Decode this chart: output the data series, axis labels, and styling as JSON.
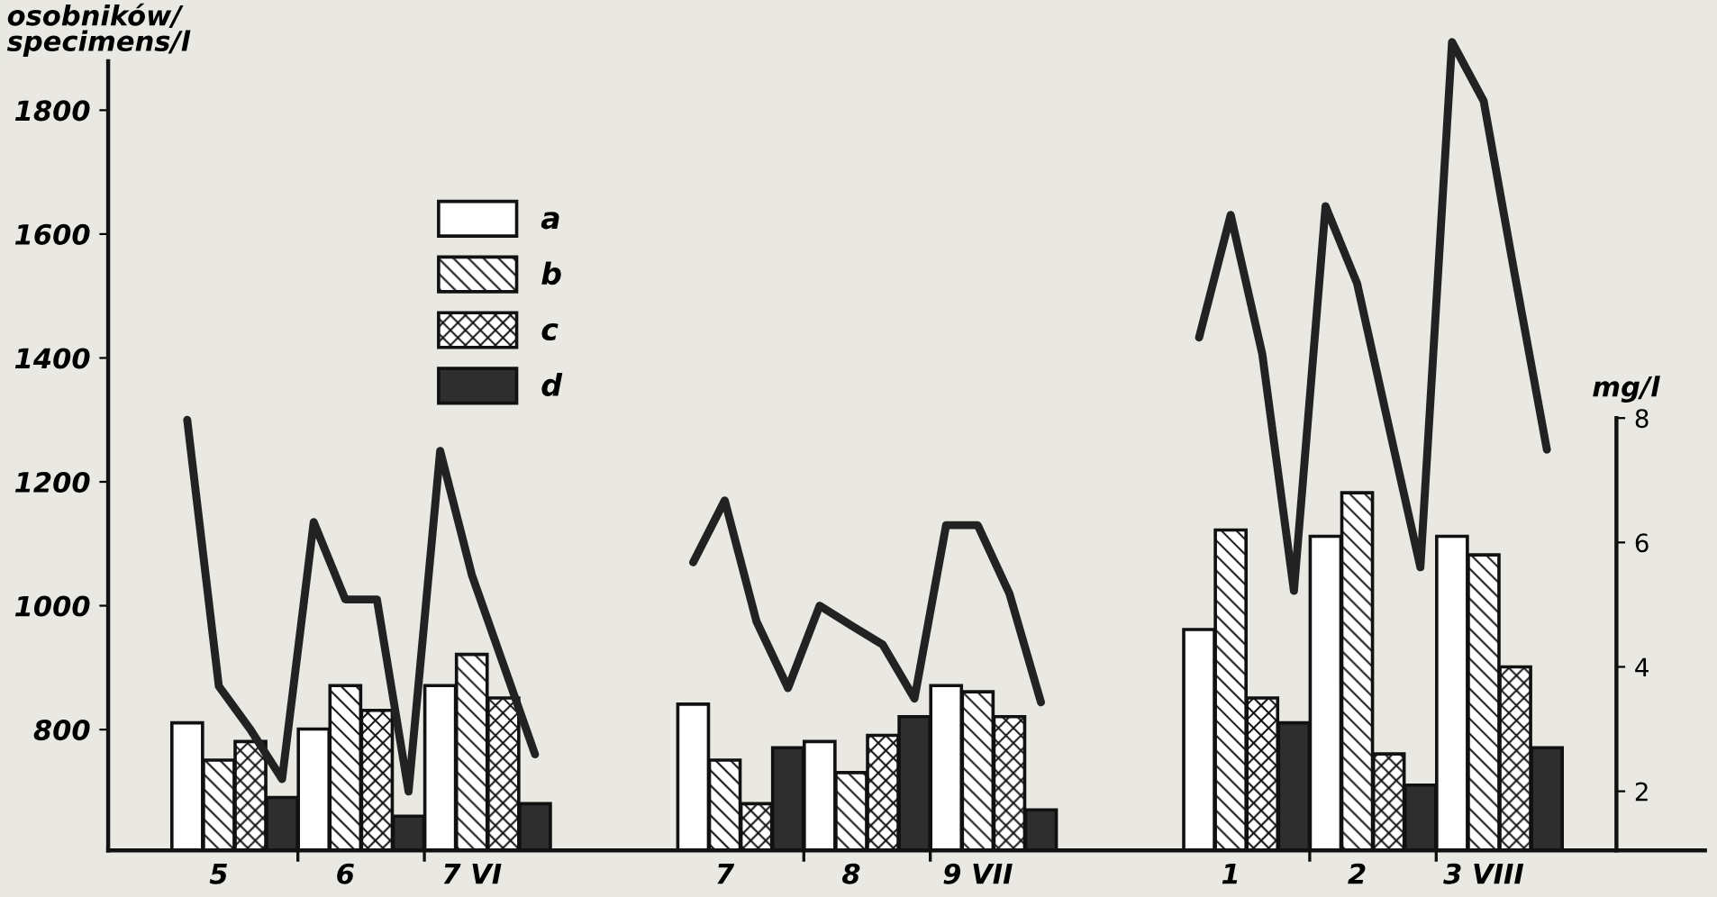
{
  "chart_data": {
    "type": "bar",
    "ylabel": "osobników/\nspecimens/l",
    "y2label": "mg/l",
    "categories": [
      null,
      "5",
      null,
      null,
      null,
      "6",
      null,
      null,
      null,
      "7 VI",
      null,
      null,
      null,
      null,
      null,
      null,
      null,
      "7",
      null,
      null,
      null,
      "8",
      null,
      null,
      null,
      "9 VII",
      null,
      null,
      null,
      null,
      null,
      null,
      null,
      "1",
      null,
      null,
      null,
      "2",
      null,
      null,
      null,
      "3 VIII",
      null,
      null
    ],
    "series": [
      {
        "name": "a",
        "color": "#ffffff",
        "axis": "y2",
        "values": [
          3.1,
          null,
          null,
          null,
          3.0,
          null,
          null,
          null,
          3.7,
          null,
          null,
          null,
          null,
          null,
          null,
          null,
          3.4,
          null,
          null,
          null,
          2.8,
          null,
          null,
          null,
          3.7,
          null,
          null,
          null,
          null,
          null,
          null,
          null,
          4.6,
          null,
          null,
          null,
          6.1,
          null,
          null,
          null,
          6.1,
          null,
          null,
          null
        ]
      },
      {
        "name": "b",
        "color": "#111111",
        "axis": "y2",
        "values": [
          null,
          2.5,
          null,
          null,
          null,
          3.7,
          null,
          null,
          null,
          4.2,
          null,
          null,
          null,
          null,
          null,
          null,
          null,
          2.5,
          null,
          null,
          null,
          2.3,
          null,
          null,
          null,
          3.6,
          null,
          null,
          null,
          null,
          null,
          null,
          null,
          6.2,
          null,
          null,
          null,
          6.8,
          null,
          null,
          null,
          5.8,
          null,
          null
        ]
      },
      {
        "name": "c",
        "color": "#111111",
        "axis": "y2",
        "values": [
          null,
          null,
          2.8,
          null,
          null,
          null,
          3.3,
          null,
          null,
          null,
          3.5,
          null,
          null,
          null,
          null,
          null,
          null,
          null,
          1.8,
          null,
          null,
          null,
          2.9,
          null,
          null,
          null,
          3.2,
          null,
          null,
          null,
          null,
          null,
          null,
          null,
          3.5,
          null,
          null,
          null,
          2.6,
          null,
          null,
          null,
          4.0,
          null
        ]
      },
      {
        "name": "d",
        "color": "#2e2e2e",
        "axis": "y2",
        "values": [
          null,
          null,
          null,
          1.9,
          null,
          null,
          null,
          1.6,
          null,
          null,
          null,
          1.8,
          null,
          null,
          null,
          null,
          null,
          null,
          null,
          2.7,
          null,
          null,
          null,
          3.2,
          null,
          null,
          null,
          1.7,
          null,
          null,
          null,
          null,
          null,
          null,
          null,
          3.1,
          null,
          null,
          null,
          2.1,
          null,
          null,
          null,
          2.7
        ]
      },
      {
        "type": "line",
        "color": "#222222",
        "values": [
          1300,
          870,
          800,
          720,
          1135,
          1010,
          1010,
          700,
          1250,
          1050,
          905,
          760,
          null,
          null,
          null,
          null,
          1070,
          1170,
          975,
          867,
          1000,
          968,
          937,
          850,
          1130,
          1130,
          1020,
          844,
          null,
          null,
          null,
          null,
          1433,
          1631,
          1406,
          1024,
          1645,
          1520,
          1290,
          1062,
          1910,
          1815,
          1530,
          1252
        ]
      }
    ],
    "ylim": [
      605,
      1920
    ],
    "yticks": [
      800,
      1000,
      1200,
      1400,
      1600,
      1800
    ],
    "y2lim": [
      1.05,
      8
    ],
    "y2ticks": [
      2,
      4,
      6,
      8
    ],
    "legend": "top left"
  }
}
